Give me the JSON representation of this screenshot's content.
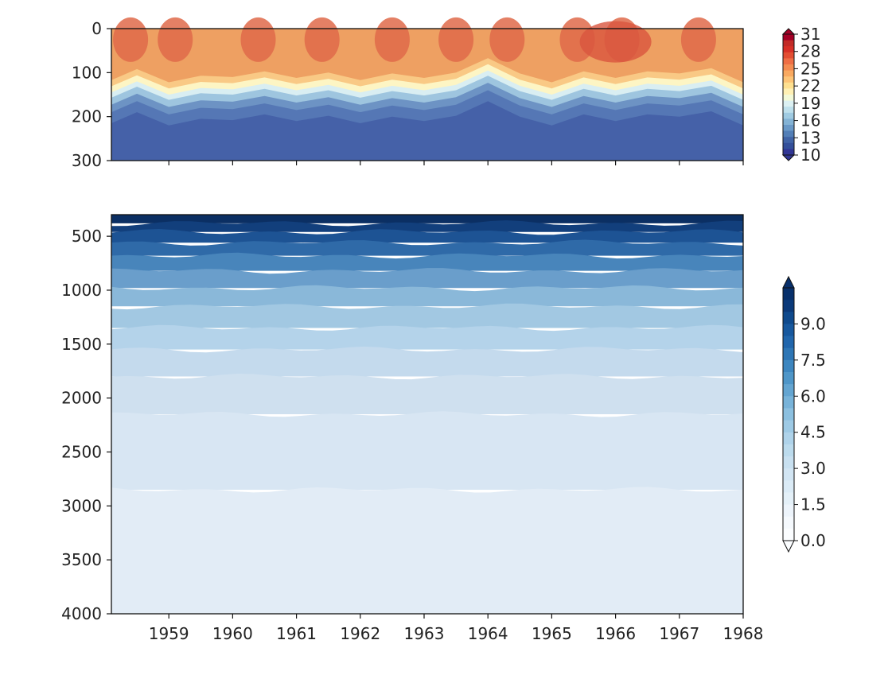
{
  "chart_data": [
    {
      "type": "heatmap",
      "panel": "upper",
      "title": "",
      "xlabel": "",
      "ylabel": "",
      "ylim": [
        300,
        0
      ],
      "xlim": [
        1958.1,
        1968.0
      ],
      "y_ticks": [
        "0",
        "100",
        "200",
        "300"
      ],
      "x_tick_labels_shown": false,
      "colormap": "RdYlBu_r",
      "colorbar": {
        "ticks": [
          "31",
          "28",
          "25",
          "22",
          "19",
          "16",
          "13",
          "10"
        ],
        "range": [
          10,
          31
        ],
        "extend": "both"
      },
      "thermocline_depth": {
        "x": [
          1958.1,
          1958.5,
          1959.0,
          1959.5,
          1960.0,
          1960.5,
          1961.0,
          1961.5,
          1962.0,
          1962.5,
          1963.0,
          1963.5,
          1964.0,
          1964.5,
          1965.0,
          1965.5,
          1966.0,
          1966.5,
          1967.0,
          1967.5,
          1968.0
        ],
        "y": [
          145,
          120,
          150,
          135,
          138,
          125,
          140,
          128,
          145,
          130,
          140,
          128,
          95,
          130,
          150,
          125,
          140,
          125,
          130,
          118,
          150
        ]
      }
    },
    {
      "type": "heatmap",
      "panel": "lower",
      "title": "",
      "xlabel": "",
      "ylabel": "",
      "ylim": [
        4000,
        300
      ],
      "xlim": [
        1958.1,
        1968.0
      ],
      "y_ticks": [
        "500",
        "1000",
        "1500",
        "2000",
        "2500",
        "3000",
        "3500",
        "4000"
      ],
      "x_ticks": [
        "1959",
        "1960",
        "1961",
        "1962",
        "1963",
        "1964",
        "1965",
        "1966",
        "1967",
        "1968"
      ],
      "colormap": "Blues",
      "colorbar": {
        "ticks": [
          "9.0",
          "7.5",
          "6.0",
          "4.5",
          "3.0",
          "1.5",
          "0.0"
        ],
        "range": [
          0,
          10.5
        ],
        "extend": "both"
      }
    }
  ]
}
